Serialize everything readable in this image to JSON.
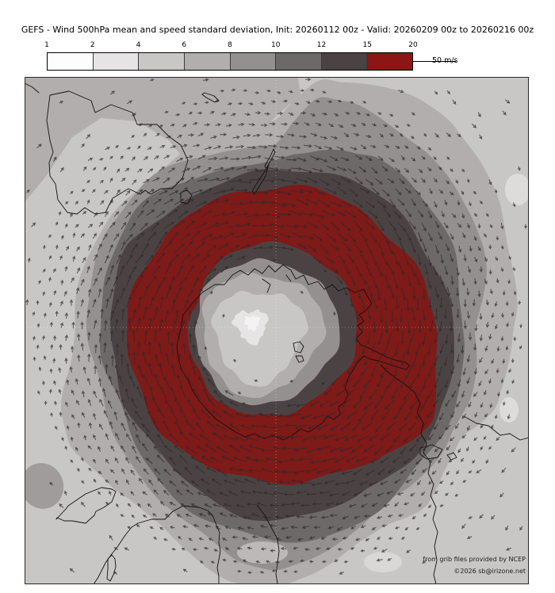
{
  "title": "GEFS - Wind 500hPa mean and speed standard deviation, Init: 20260112 00z - Valid: 20260209 00z to 20260216 00z",
  "legend": {
    "tick_labels": [
      "1",
      "2",
      "4",
      "6",
      "8",
      "10",
      "12",
      "15",
      "20"
    ],
    "reference_value": "50",
    "reference_unit": "m/s"
  },
  "credits": {
    "line1": "from grib files provided by NCEP",
    "line2": "©2026 sb@irizone.net"
  },
  "palette": {
    "white": "#fdfdfd",
    "g24": "#e6e4e4",
    "g46": "#c9c6c6",
    "g68": "#b2aeae",
    "g810": "#959090",
    "g1012": "#6e6969",
    "g1215": "#4b4343",
    "red": "#8c1515",
    "map_red": "#7e1a18",
    "arrow": "#2e2929",
    "coast": "#151111",
    "graticule": "#ffffff",
    "frame": "#2a2a2a",
    "patch_blob": "#a19c9c",
    "light_spot": "#dedbdb",
    "core_white": "#f4f2f2"
  },
  "map": {
    "seed": 42
  }
}
